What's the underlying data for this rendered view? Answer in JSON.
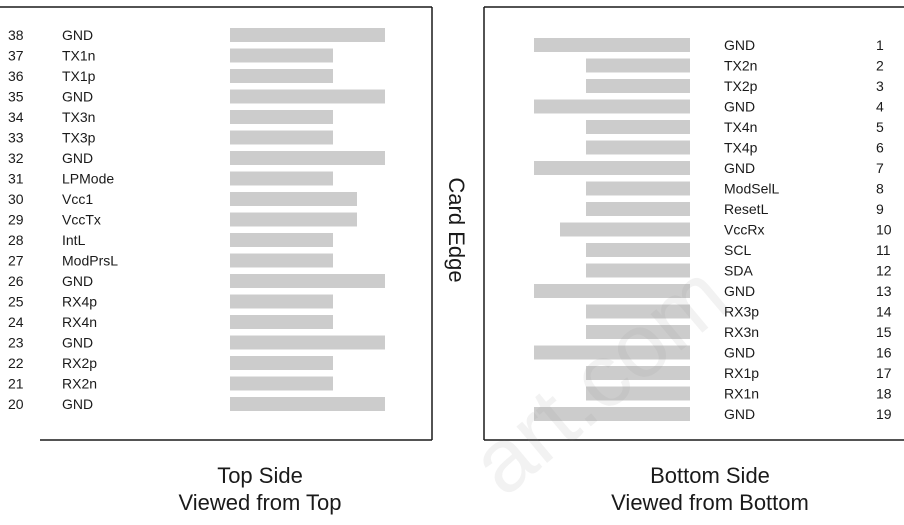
{
  "top_side": {
    "caption_line1": "Top Side",
    "caption_line2": "Viewed from Top",
    "pins": [
      {
        "num": "38",
        "name": "GND",
        "pad": "long"
      },
      {
        "num": "37",
        "name": "TX1n",
        "pad": "short"
      },
      {
        "num": "36",
        "name": "TX1p",
        "pad": "short"
      },
      {
        "num": "35",
        "name": "GND",
        "pad": "long"
      },
      {
        "num": "34",
        "name": "TX3n",
        "pad": "short"
      },
      {
        "num": "33",
        "name": "TX3p",
        "pad": "short"
      },
      {
        "num": "32",
        "name": "GND",
        "pad": "long"
      },
      {
        "num": "31",
        "name": "LPMode",
        "pad": "short"
      },
      {
        "num": "30",
        "name": "Vcc1",
        "pad": "medium"
      },
      {
        "num": "29",
        "name": "VccTx",
        "pad": "medium"
      },
      {
        "num": "28",
        "name": "IntL",
        "pad": "short"
      },
      {
        "num": "27",
        "name": "ModPrsL",
        "pad": "short"
      },
      {
        "num": "26",
        "name": "GND",
        "pad": "long"
      },
      {
        "num": "25",
        "name": "RX4p",
        "pad": "short"
      },
      {
        "num": "24",
        "name": "RX4n",
        "pad": "short"
      },
      {
        "num": "23",
        "name": "GND",
        "pad": "long"
      },
      {
        "num": "22",
        "name": "RX2p",
        "pad": "short"
      },
      {
        "num": "21",
        "name": "RX2n",
        "pad": "short"
      },
      {
        "num": "20",
        "name": "GND",
        "pad": "long"
      }
    ]
  },
  "bottom_side": {
    "caption_line1": "Bottom Side",
    "caption_line2": "Viewed from Bottom",
    "pins": [
      {
        "num": "1",
        "name": "GND",
        "pad": "long"
      },
      {
        "num": "2",
        "name": "TX2n",
        "pad": "short"
      },
      {
        "num": "3",
        "name": "TX2p",
        "pad": "short"
      },
      {
        "num": "4",
        "name": "GND",
        "pad": "long"
      },
      {
        "num": "5",
        "name": "TX4n",
        "pad": "short"
      },
      {
        "num": "6",
        "name": "TX4p",
        "pad": "short"
      },
      {
        "num": "7",
        "name": "GND",
        "pad": "long"
      },
      {
        "num": "8",
        "name": "ModSelL",
        "pad": "short"
      },
      {
        "num": "9",
        "name": "ResetL",
        "pad": "short"
      },
      {
        "num": "10",
        "name": "VccRx",
        "pad": "medium"
      },
      {
        "num": "11",
        "name": "SCL",
        "pad": "short"
      },
      {
        "num": "12",
        "name": "SDA",
        "pad": "short"
      },
      {
        "num": "13",
        "name": "GND",
        "pad": "long"
      },
      {
        "num": "14",
        "name": "RX3p",
        "pad": "short"
      },
      {
        "num": "15",
        "name": "RX3n",
        "pad": "short"
      },
      {
        "num": "16",
        "name": "GND",
        "pad": "long"
      },
      {
        "num": "17",
        "name": "RX1p",
        "pad": "short"
      },
      {
        "num": "18",
        "name": "RX1n",
        "pad": "short"
      },
      {
        "num": "19",
        "name": "GND",
        "pad": "long"
      }
    ]
  },
  "card_edge_label": "Card Edge",
  "colors": {
    "pad": "#cccccc",
    "line": "#1a1a1a",
    "text": "#1a1a1a"
  }
}
